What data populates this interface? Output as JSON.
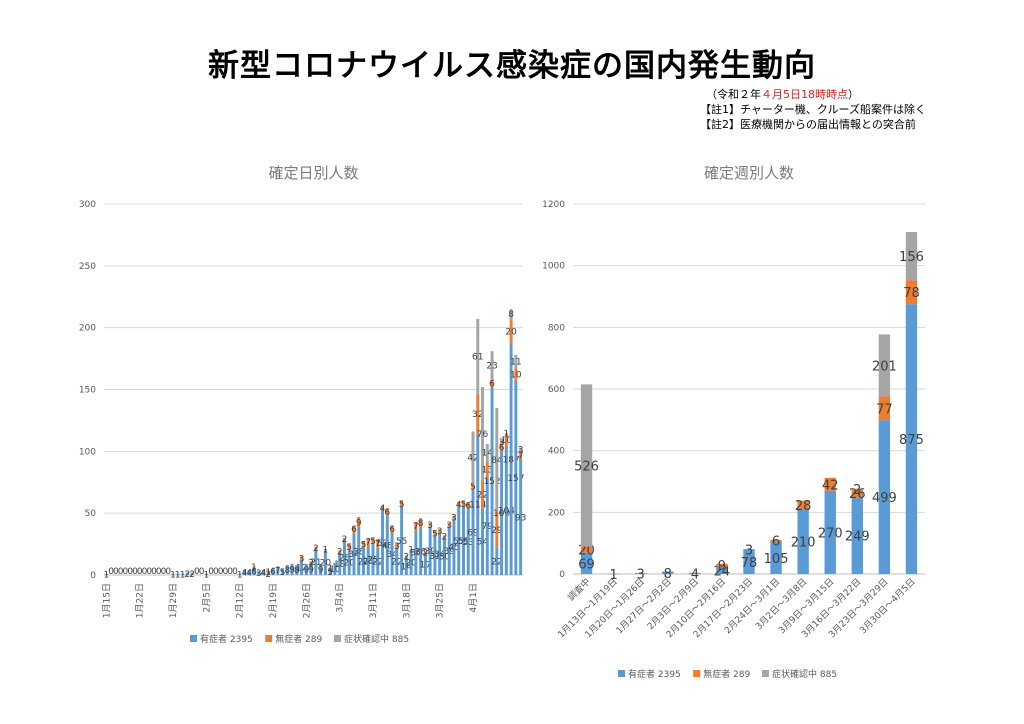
{
  "page": {
    "title": "新型コロナウイルス感染症の国内発生動向",
    "note_date_prefix": "（令和２年",
    "note_date_red": "４月5日18時時点",
    "note_date_suffix": "）",
    "note1": "【註1】チャーター機、クルーズ船案件は除く",
    "note2": "【註2】医療機関からの届出情報との突合前"
  },
  "colors": {
    "blue": "#5b9bd5",
    "orange": "#ed7d31",
    "gray": "#a5a5a5"
  },
  "chart_data": [
    {
      "type": "bar",
      "stacked": true,
      "title": "確定日別人数",
      "ylim": [
        0,
        300
      ],
      "yticks": [
        0,
        50,
        100,
        150,
        200,
        250,
        300
      ],
      "grid": true,
      "legend_position": "bottom",
      "x_labels": [
        "1月15日",
        "1月22日",
        "1月29日",
        "2月5日",
        "2月12日",
        "2月19日",
        "2月26日",
        "3月4日",
        "3月11日",
        "3月18日",
        "3月25日",
        "4月1日"
      ],
      "series": [
        {
          "name": "有症者 2395",
          "color": "#5b9bd5",
          "values": [
            1,
            0,
            0,
            0,
            0,
            0,
            0,
            0,
            0,
            0,
            0,
            0,
            0,
            0,
            1,
            1,
            1,
            2,
            2,
            0,
            0,
            1,
            0,
            0,
            0,
            0,
            0,
            0,
            1,
            4,
            4,
            6,
            3,
            4,
            2,
            6,
            7,
            5,
            8,
            9,
            8,
            12,
            9,
            9,
            21,
            9,
            20,
            5,
            10,
            18,
            28,
            20,
            34,
            38,
            22,
            23,
            25,
            22,
            52,
            48,
            34,
            22,
            55,
            14,
            20,
            36,
            38,
            17,
            39,
            31,
            34,
            30,
            39,
            45,
            55,
            55,
            53,
            69,
            114,
            54,
            79,
            152,
            22,
            100,
            104,
            187,
            157,
            93
          ]
        },
        {
          "name": "無症者 289",
          "color": "#ed7d31",
          "values": [
            0,
            0,
            0,
            0,
            0,
            0,
            0,
            0,
            0,
            0,
            0,
            0,
            0,
            0,
            0,
            0,
            0,
            0,
            0,
            0,
            0,
            0,
            0,
            0,
            0,
            0,
            0,
            0,
            0,
            0,
            0,
            1,
            0,
            0,
            1,
            0,
            0,
            0,
            0,
            0,
            0,
            3,
            0,
            2,
            2,
            0,
            1,
            1,
            0,
            2,
            2,
            5,
            6,
            9,
            5,
            7,
            5,
            7,
            4,
            6,
            6,
            3,
            5,
            2,
            1,
            7,
            8,
            2,
            3,
            5,
            3,
            2,
            3,
            3,
            4,
            5,
            6,
            5,
            32,
            22,
            13,
            6,
            29,
            6,
            10,
            20,
            10,
            7
          ]
        },
        {
          "name": "症状確認中 885",
          "color": "#a5a5a5",
          "values": [
            0,
            0,
            0,
            0,
            0,
            0,
            0,
            0,
            0,
            0,
            0,
            0,
            0,
            0,
            0,
            0,
            0,
            0,
            0,
            0,
            0,
            0,
            0,
            0,
            0,
            0,
            0,
            0,
            0,
            0,
            0,
            0,
            0,
            0,
            0,
            0,
            0,
            0,
            0,
            0,
            0,
            0,
            0,
            0,
            0,
            0,
            0,
            0,
            0,
            0,
            0,
            0,
            0,
            0,
            0,
            0,
            0,
            0,
            0,
            0,
            0,
            0,
            0,
            0,
            0,
            0,
            0,
            0,
            0,
            0,
            0,
            0,
            0,
            0,
            0,
            0,
            0,
            42,
            61,
            76,
            14,
            23,
            84,
            3,
            1,
            8,
            11,
            3
          ]
        }
      ]
    },
    {
      "type": "bar",
      "stacked": true,
      "title": "確定週別人数",
      "ylim": [
        0,
        1200
      ],
      "yticks": [
        0,
        200,
        400,
        600,
        800,
        1000,
        1200
      ],
      "grid": true,
      "legend_position": "bottom",
      "categories": [
        "調査中",
        "1月13日～1月19日",
        "1月20日～1月26日",
        "1月27日～2月2日",
        "2月3日～2月9日",
        "2月10日～2月16日",
        "2月17日～2月23日",
        "2月24日～3月1日",
        "3月2日～3月8日",
        "3月9日～3月15日",
        "3月16日～3月22日",
        "3月23日～3月29日",
        "3月30日～4月5日"
      ],
      "series": [
        {
          "name": "有症者 2395",
          "color": "#5b9bd5",
          "values": [
            69,
            1,
            3,
            8,
            4,
            24,
            78,
            105,
            210,
            270,
            249,
            499,
            875
          ]
        },
        {
          "name": "無症者 289",
          "color": "#ed7d31",
          "values": [
            20,
            0,
            0,
            0,
            0,
            9,
            3,
            6,
            28,
            42,
            26,
            77,
            78
          ]
        },
        {
          "name": "症状確認中 885",
          "color": "#a5a5a5",
          "values": [
            526,
            0,
            0,
            0,
            0,
            0,
            0,
            0,
            0,
            0,
            2,
            201,
            156
          ]
        }
      ]
    }
  ]
}
